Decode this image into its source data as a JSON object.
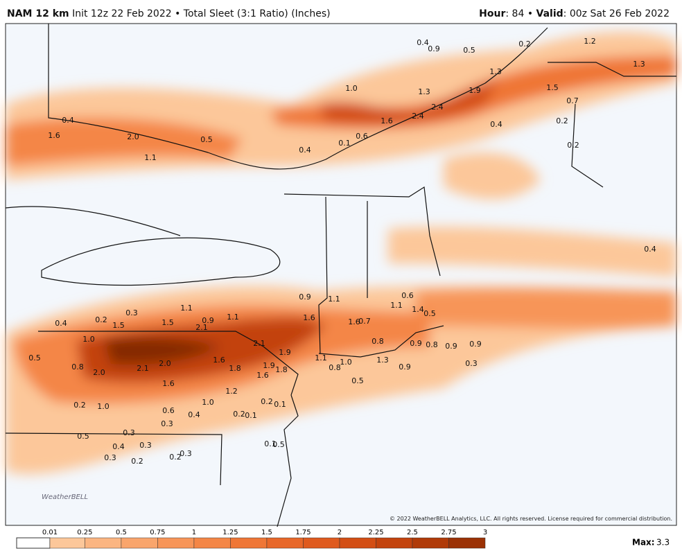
{
  "header": {
    "model": "NAM 12 km",
    "desc": "Init 12z 22 Feb 2022 • Total Sleet (3:1 Ratio) (Inches)",
    "hour_label": "Hour",
    "hour_text": ": 84 • ",
    "valid_label": "Valid",
    "valid_text": ": 00z Sat 26 Feb 2022"
  },
  "map": {
    "labels": [
      "0.4",
      "0.9",
      "0.5",
      "0.2",
      "1.2",
      "1.3",
      "1.3",
      "1.0",
      "1.3",
      "1.9",
      "2.4",
      "2.4",
      "1.6",
      "0.6",
      "0.1",
      "0.4",
      "1.5",
      "0.7",
      "0.2",
      "0.4",
      "0.2",
      "0.4",
      "1.6",
      "2.0",
      "0.5",
      "1.1",
      "0.4",
      "0.9",
      "1.1",
      "0.6",
      "1.1",
      "1.4",
      "0.5",
      "1.1",
      "0.3",
      "0.2",
      "0.4",
      "1.5",
      "1.5",
      "0.9",
      "2.1",
      "1.1",
      "1.6",
      "1.6",
      "0.7",
      "1.0",
      "2.1",
      "0.8",
      "1.9",
      "0.5",
      "0.8",
      "1.6",
      "2.0",
      "2.1",
      "2.0",
      "1.8",
      "1.9",
      "1.8",
      "1.6",
      "1.1",
      "1.0",
      "0.8",
      "1.3",
      "0.9",
      "0.9",
      "0.8",
      "0.9",
      "0.9",
      "0.3",
      "1.6",
      "1.2",
      "0.5",
      "0.2",
      "1.0",
      "1.0",
      "0.6",
      "0.4",
      "0.2",
      "0.1",
      "0.2",
      "0.1",
      "0.3",
      "0.5",
      "0.3",
      "0.4",
      "0.3",
      "0.3",
      "0.2",
      "0.2",
      "0.3",
      "0.1",
      "0.5"
    ],
    "logo": "WeatherBELL",
    "copyright": "© 2022 WeatherBELL Analytics, LLC. All rights reserved. License required for commercial distribution."
  },
  "colorbar": {
    "ticks": [
      0.01,
      0.25,
      0.5,
      0.75,
      1,
      1.25,
      1.5,
      1.75,
      2,
      2.25,
      2.5,
      2.75,
      3
    ],
    "colors": [
      "#fcc79a",
      "#fbb581",
      "#f9a56c",
      "#f79558",
      "#f48646",
      "#ef7636",
      "#e86729",
      "#df5a1e",
      "#d34e14",
      "#c3430d",
      "#b03a08",
      "#9b3105",
      "#852903"
    ],
    "max_label": "Max:",
    "max_value": 3.3
  }
}
